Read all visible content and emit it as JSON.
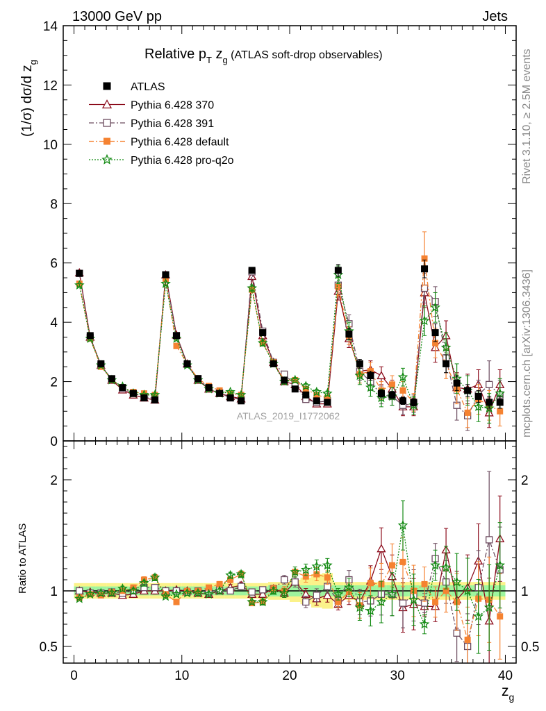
{
  "header": {
    "left": "13000 GeV pp",
    "right": "Jets"
  },
  "side_labels": {
    "rivet": "Rivet 3.1.10, ≥ 2.5M events",
    "mcplots": "mcplots.cern.ch [arXiv:1306.3436]"
  },
  "chart_data": {
    "type": "scatter",
    "title": "Relative pT zg (ATLAS soft-drop observables)",
    "title_parts": {
      "pre": "Relative p",
      "sub1": "T",
      "mid": " z",
      "sub2": "g",
      "post": " (ATLAS soft-drop observables)"
    },
    "watermark": "ATLAS_2019_I1772062",
    "ylabel_parts": {
      "main": "(1/σ) dσ/d z",
      "sub": "g"
    },
    "xlabel_parts": {
      "main": "z",
      "sub": "g"
    },
    "ratio_ylabel": "Ratio to ATLAS",
    "xlim": [
      -1,
      41
    ],
    "ylim": [
      0,
      14
    ],
    "ratio_ylim": [
      0.35,
      2.35
    ],
    "x_ticks": [
      "0",
      "10",
      "20",
      "30",
      "40"
    ],
    "y_ticks": [
      "0",
      "2",
      "4",
      "6",
      "8",
      "10",
      "12",
      "14"
    ],
    "ratio_ticks": [
      "0.5",
      "1",
      "2"
    ],
    "legend_position": "top-left",
    "x": [
      0.5,
      1.5,
      2.5,
      3.5,
      4.5,
      5.5,
      6.5,
      7.5,
      8.5,
      9.5,
      10.5,
      11.5,
      12.5,
      13.5,
      14.5,
      15.5,
      16.5,
      17.5,
      18.5,
      19.5,
      20.5,
      21.5,
      22.5,
      23.5,
      24.5,
      25.5,
      26.5,
      27.5,
      28.5,
      29.5,
      30.5,
      31.5,
      32.5,
      33.5,
      34.5,
      35.5,
      36.5,
      37.5,
      38.5,
      39.5
    ],
    "series": [
      {
        "name": "ATLAS",
        "color": "#000000",
        "marker": "filled-square",
        "line": "none",
        "values": [
          5.65,
          3.55,
          2.6,
          2.1,
          1.8,
          1.6,
          1.45,
          1.38,
          5.6,
          3.55,
          2.6,
          2.1,
          1.8,
          1.6,
          1.45,
          1.35,
          5.75,
          3.65,
          2.6,
          2.05,
          1.75,
          1.55,
          1.35,
          1.3,
          5.75,
          3.6,
          2.6,
          2.2,
          1.6,
          1.55,
          1.35,
          1.3,
          5.8,
          3.65,
          2.6,
          1.95,
          1.7,
          1.5,
          1.3,
          1.3
        ],
        "errors": [
          0.05,
          0.05,
          0.05,
          0.05,
          0.05,
          0.05,
          0.05,
          0.05,
          0.06,
          0.05,
          0.05,
          0.05,
          0.05,
          0.05,
          0.05,
          0.05,
          0.08,
          0.08,
          0.08,
          0.06,
          0.06,
          0.06,
          0.06,
          0.06,
          0.2,
          0.18,
          0.15,
          0.15,
          0.12,
          0.12,
          0.12,
          0.12,
          0.3,
          0.3,
          0.3,
          0.25,
          0.2,
          0.2,
          0.2,
          0.2
        ]
      },
      {
        "name": "Pythia 6.428 370",
        "color": "#8b0a1a",
        "marker": "open-triangle",
        "line": "solid",
        "values": [
          5.67,
          3.5,
          2.55,
          2.05,
          1.72,
          1.55,
          1.45,
          1.38,
          5.6,
          3.57,
          2.6,
          2.05,
          1.75,
          1.6,
          1.5,
          1.42,
          5.55,
          3.55,
          2.65,
          2.0,
          1.9,
          1.5,
          1.25,
          1.25,
          5.05,
          3.45,
          2.35,
          2.4,
          2.2,
          1.75,
          1.15,
          1.15,
          5.0,
          3.15,
          3.55,
          1.8,
          1.75,
          1.9,
          0.95,
          1.9
        ],
        "errors": [
          0.05,
          0.05,
          0.05,
          0.04,
          0.04,
          0.04,
          0.04,
          0.04,
          0.06,
          0.05,
          0.05,
          0.04,
          0.04,
          0.04,
          0.04,
          0.04,
          0.1,
          0.1,
          0.08,
          0.08,
          0.08,
          0.08,
          0.08,
          0.08,
          0.3,
          0.3,
          0.3,
          0.3,
          0.3,
          0.3,
          0.3,
          0.3,
          0.5,
          0.5,
          0.5,
          0.5,
          0.5,
          0.5,
          0.5,
          0.5
        ]
      },
      {
        "name": "Pythia 6.428 391",
        "color": "#6b4a5e",
        "marker": "open-square",
        "line": "dashdot",
        "values": [
          5.65,
          3.48,
          2.55,
          2.08,
          1.77,
          1.6,
          1.5,
          1.42,
          5.6,
          3.55,
          2.58,
          2.1,
          1.78,
          1.62,
          1.45,
          1.4,
          5.7,
          3.7,
          2.65,
          2.25,
          1.9,
          1.4,
          1.3,
          1.35,
          5.25,
          3.95,
          2.35,
          2.0,
          1.55,
          1.5,
          1.2,
          1.25,
          5.15,
          4.7,
          2.8,
          1.2,
          0.85,
          1.55,
          1.9,
          1.55
        ],
        "errors": [
          0.05,
          0.05,
          0.05,
          0.04,
          0.04,
          0.04,
          0.04,
          0.04,
          0.06,
          0.05,
          0.05,
          0.04,
          0.04,
          0.04,
          0.04,
          0.04,
          0.1,
          0.1,
          0.08,
          0.08,
          0.08,
          0.08,
          0.08,
          0.08,
          0.3,
          0.3,
          0.3,
          0.3,
          0.3,
          0.3,
          0.3,
          0.3,
          0.5,
          0.5,
          0.5,
          0.5,
          0.5,
          0.5,
          0.8,
          0.5
        ]
      },
      {
        "name": "Pythia 6.428 default",
        "color": "#f58231",
        "marker": "filled-square",
        "line": "dashdot",
        "values": [
          5.3,
          3.45,
          2.5,
          2.07,
          1.8,
          1.65,
          1.6,
          1.55,
          5.45,
          3.2,
          2.6,
          2.1,
          1.85,
          1.7,
          1.6,
          1.55,
          5.1,
          3.3,
          2.65,
          2.05,
          2.05,
          1.75,
          1.55,
          1.45,
          5.2,
          3.55,
          2.25,
          2.35,
          1.7,
          1.9,
          1.7,
          1.3,
          6.15,
          3.3,
          2.6,
          1.75,
          0.95,
          1.4,
          1.2,
          1.0
        ],
        "errors": [
          0.05,
          0.05,
          0.05,
          0.04,
          0.04,
          0.04,
          0.04,
          0.04,
          0.06,
          0.05,
          0.05,
          0.04,
          0.04,
          0.04,
          0.04,
          0.04,
          0.1,
          0.1,
          0.08,
          0.08,
          0.08,
          0.08,
          0.08,
          0.08,
          0.3,
          0.3,
          0.3,
          0.3,
          0.3,
          0.3,
          0.3,
          0.3,
          0.9,
          0.5,
          0.5,
          0.5,
          0.5,
          0.5,
          0.5,
          0.5
        ]
      },
      {
        "name": "Pythia 6.428 pro-q2o",
        "color": "#138a13",
        "marker": "star",
        "line": "dotted",
        "values": [
          5.25,
          3.45,
          2.55,
          2.05,
          1.83,
          1.6,
          1.55,
          1.55,
          5.3,
          3.45,
          2.55,
          2.05,
          1.75,
          1.6,
          1.65,
          1.55,
          5.15,
          3.3,
          2.6,
          2.0,
          2.05,
          1.85,
          1.65,
          1.6,
          5.6,
          3.7,
          2.2,
          1.8,
          1.45,
          1.5,
          2.15,
          1.2,
          4.05,
          4.5,
          3.15,
          2.1,
          1.7,
          1.15,
          1.1,
          1.6
        ],
        "errors": [
          0.05,
          0.05,
          0.05,
          0.04,
          0.04,
          0.04,
          0.04,
          0.04,
          0.06,
          0.05,
          0.05,
          0.04,
          0.04,
          0.04,
          0.04,
          0.04,
          0.1,
          0.1,
          0.08,
          0.08,
          0.08,
          0.08,
          0.08,
          0.08,
          0.3,
          0.3,
          0.3,
          0.3,
          0.3,
          0.3,
          0.3,
          0.3,
          0.5,
          0.5,
          0.5,
          0.5,
          0.5,
          0.5,
          0.5,
          0.5
        ]
      }
    ],
    "ratio_bands": {
      "inner_color": "#9ef59e",
      "outer_color": "#fbf28a",
      "inner_halfwidth": [
        0.04,
        0.04,
        0.04,
        0.04,
        0.04,
        0.04,
        0.04,
        0.04,
        0.04,
        0.04,
        0.04,
        0.04,
        0.04,
        0.04,
        0.04,
        0.04,
        0.04,
        0.04,
        0.05,
        0.05,
        0.05,
        0.05,
        0.05,
        0.05,
        0.05,
        0.05,
        0.05,
        0.05,
        0.05,
        0.05,
        0.05,
        0.05,
        0.05,
        0.05,
        0.05,
        0.05,
        0.05,
        0.05,
        0.05,
        0.05
      ],
      "outer_halfwidth": [
        0.07,
        0.07,
        0.07,
        0.07,
        0.07,
        0.07,
        0.07,
        0.07,
        0.07,
        0.07,
        0.07,
        0.07,
        0.07,
        0.07,
        0.07,
        0.07,
        0.07,
        0.07,
        0.08,
        0.08,
        0.1,
        0.12,
        0.15,
        0.16,
        0.08,
        0.08,
        0.08,
        0.08,
        0.08,
        0.08,
        0.08,
        0.08,
        0.08,
        0.08,
        0.08,
        0.08,
        0.08,
        0.08,
        0.08,
        0.08
      ]
    },
    "ratio_values": [
      [
        1.0,
        0.99,
        0.98,
        0.98,
        0.96,
        0.97,
        1.0,
        1.0,
        1.0,
        1.01,
        1.0,
        0.98,
        0.97,
        1.0,
        1.03,
        1.05,
        0.97,
        0.97,
        1.02,
        0.98,
        1.08,
        0.97,
        0.93,
        0.96,
        0.88,
        0.96,
        0.9,
        1.09,
        1.38,
        1.13,
        0.85,
        0.88,
        0.86,
        0.86,
        1.37,
        0.92,
        1.03,
        1.27,
        0.73,
        1.47
      ],
      [
        1.0,
        0.98,
        0.98,
        0.99,
        0.98,
        1.0,
        1.03,
        1.03,
        1.0,
        1.0,
        0.99,
        1.0,
        0.99,
        1.01,
        1.0,
        1.04,
        0.99,
        1.01,
        1.02,
        1.1,
        1.08,
        0.9,
        0.96,
        1.04,
        0.91,
        1.1,
        0.9,
        0.91,
        0.97,
        0.97,
        0.89,
        0.96,
        0.89,
        1.29,
        1.08,
        0.62,
        0.5,
        1.03,
        1.46,
        1.19
      ],
      [
        0.94,
        0.97,
        0.96,
        0.99,
        1.0,
        1.03,
        1.1,
        1.12,
        0.97,
        0.9,
        1.0,
        1.0,
        1.03,
        1.06,
        1.1,
        1.15,
        0.89,
        0.9,
        1.02,
        1.0,
        1.17,
        1.13,
        1.15,
        1.12,
        0.9,
        0.99,
        0.87,
        1.07,
        1.06,
        1.23,
        1.26,
        1.0,
        1.06,
        0.9,
        1.0,
        0.9,
        0.56,
        0.93,
        0.92,
        0.77
      ],
      [
        0.93,
        0.97,
        0.98,
        0.98,
        1.02,
        1.0,
        1.07,
        1.12,
        0.95,
        0.97,
        0.98,
        0.98,
        0.97,
        1.0,
        1.14,
        1.15,
        0.9,
        0.9,
        1.0,
        0.98,
        1.17,
        1.19,
        1.22,
        1.23,
        0.97,
        1.03,
        0.85,
        0.82,
        0.9,
        0.97,
        1.59,
        0.92,
        0.7,
        1.23,
        1.21,
        1.08,
        1.0,
        0.77,
        0.85,
        1.23
      ]
    ]
  }
}
